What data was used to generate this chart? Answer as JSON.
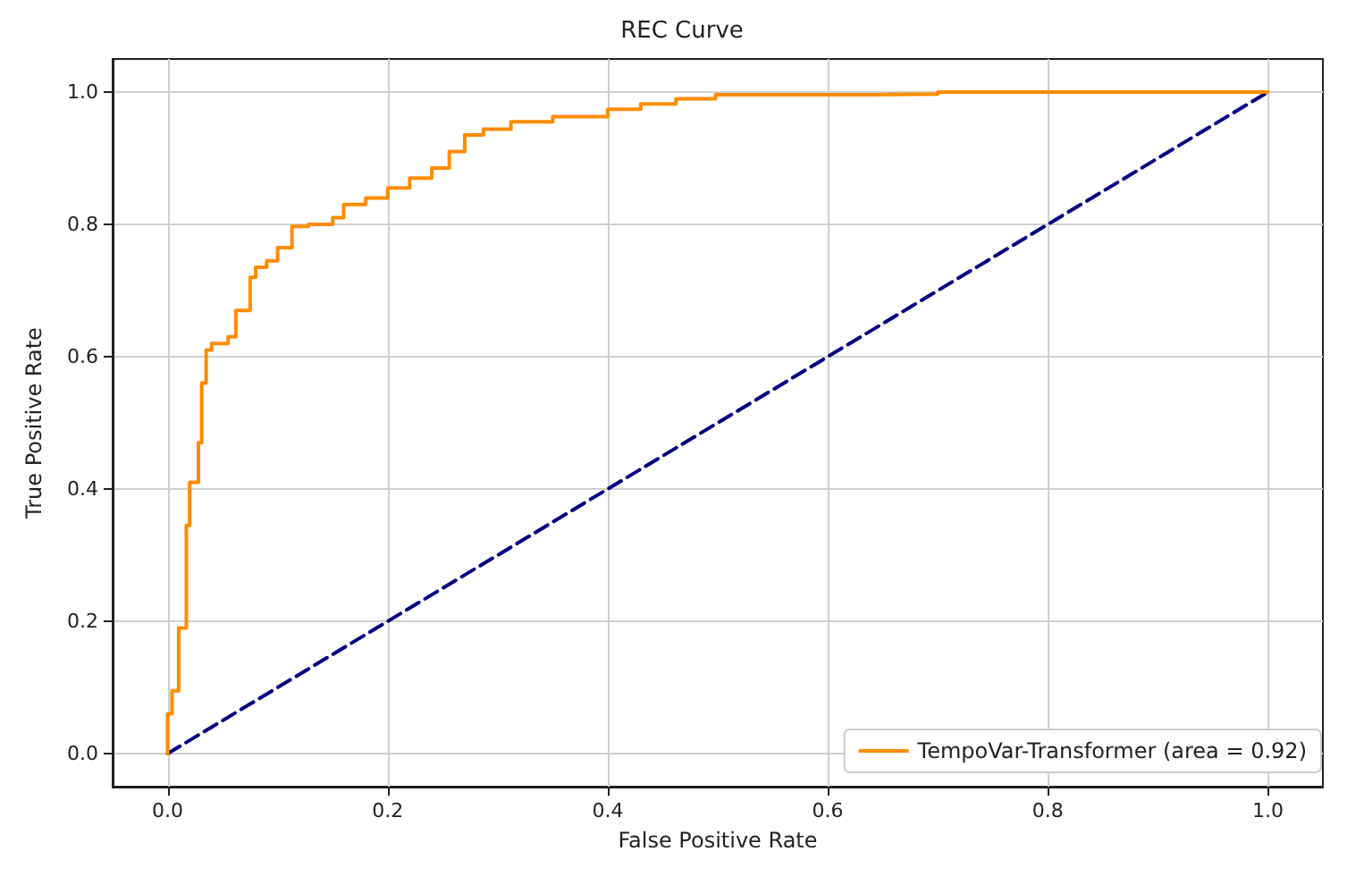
{
  "chart_data": {
    "type": "line",
    "title": "REC Curve",
    "xlabel": "False Positive Rate",
    "ylabel": "True Positive Rate",
    "xlim": [
      -0.05,
      1.05
    ],
    "ylim": [
      -0.05,
      1.05
    ],
    "xticks": [
      {
        "value": 0,
        "label": "0.0"
      },
      {
        "value": 0.2,
        "label": "0.2"
      },
      {
        "value": 0.4,
        "label": "0.4"
      },
      {
        "value": 0.6,
        "label": "0.6"
      },
      {
        "value": 0.8,
        "label": "0.8"
      },
      {
        "value": 1,
        "label": "1.0"
      }
    ],
    "yticks": [
      {
        "value": 0,
        "label": "0.0"
      },
      {
        "value": 0.2,
        "label": "0.2"
      },
      {
        "value": 0.4,
        "label": "0.4"
      },
      {
        "value": 0.6,
        "label": "0.6"
      },
      {
        "value": 0.8,
        "label": "0.8"
      },
      {
        "value": 1,
        "label": "1.0"
      }
    ],
    "grid": true,
    "legend": "bottom right",
    "marker": "none",
    "series": [
      {
        "name": "TempoVar-Transformer (area = 0.92)",
        "type": "step",
        "color": "#ff8c00",
        "line_style": "solid",
        "x": [
          0,
          0,
          0.004,
          0.01,
          0.017,
          0.02,
          0.028,
          0.031,
          0.035,
          0.04,
          0.055,
          0.062,
          0.075,
          0.08,
          0.09,
          0.1,
          0.113,
          0.128,
          0.15,
          0.16,
          0.18,
          0.2,
          0.22,
          0.24,
          0.256,
          0.27,
          0.287,
          0.312,
          0.35,
          0.4,
          0.43,
          0.462,
          0.498,
          0.642,
          0.7,
          1.0
        ],
        "values": [
          0,
          0.06,
          0.095,
          0.19,
          0.345,
          0.41,
          0.47,
          0.56,
          0.61,
          0.62,
          0.63,
          0.67,
          0.72,
          0.735,
          0.745,
          0.765,
          0.797,
          0.8,
          0.81,
          0.83,
          0.84,
          0.855,
          0.87,
          0.885,
          0.91,
          0.935,
          0.944,
          0.955,
          0.963,
          0.974,
          0.982,
          0.99,
          0.996,
          0.997,
          1.0,
          1.0
        ]
      },
      {
        "color": "#000080",
        "line_style": "dashed",
        "x": [
          0,
          1
        ],
        "values": [
          0,
          1
        ]
      }
    ]
  }
}
